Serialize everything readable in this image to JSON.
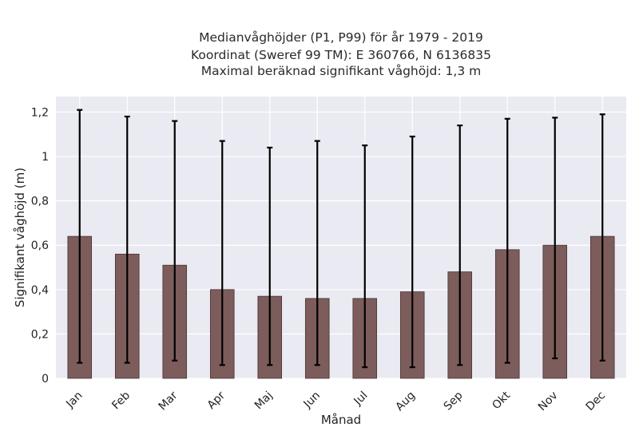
{
  "chart_data": {
    "type": "bar",
    "title_lines": [
      "Medianvåghöjder (P1, P99) för år 1979 - 2019",
      "Koordinat (Sweref 99 TM): E 360766, N 6136835",
      "Maximal beräknad signifikant våghöjd: 1,3 m"
    ],
    "xlabel": "Månad",
    "ylabel": "Signifikant våghöjd (m)",
    "categories": [
      "Jan",
      "Feb",
      "Mar",
      "Apr",
      "Maj",
      "Jun",
      "Jul",
      "Aug",
      "Sep",
      "Okt",
      "Nov",
      "Dec"
    ],
    "values": [
      0.64,
      0.56,
      0.51,
      0.4,
      0.37,
      0.36,
      0.36,
      0.39,
      0.48,
      0.58,
      0.6,
      0.64
    ],
    "error_low": [
      0.07,
      0.07,
      0.08,
      0.06,
      0.06,
      0.06,
      0.05,
      0.05,
      0.06,
      0.07,
      0.09,
      0.08
    ],
    "error_high": [
      1.21,
      1.18,
      1.16,
      1.07,
      1.04,
      1.07,
      1.05,
      1.09,
      1.14,
      1.17,
      1.175,
      1.19
    ],
    "ylim": [
      0,
      1.27
    ],
    "yticks": [
      0,
      0.2,
      0.4,
      0.6,
      0.8,
      1.0,
      1.2
    ],
    "ytick_labels": [
      "0",
      "0,2",
      "0,4",
      "0,6",
      "0,8",
      "1",
      "1,2"
    ],
    "grid": true,
    "colors": {
      "bar": "#7d5c5c",
      "bar_edge": "#4a3434",
      "plot_background": "#eaeaf2",
      "grid": "#ffffff",
      "error_bar": "#000000"
    }
  }
}
